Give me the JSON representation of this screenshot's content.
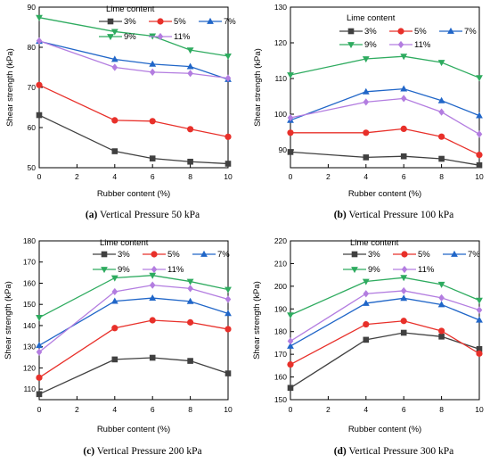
{
  "chart_data": [
    {
      "type": "line",
      "panel_label": "(a)",
      "caption": "Vertical Pressure 50 kPa",
      "xlabel": "Rubber content (%)",
      "ylabel": "Shear strength (kPa)",
      "x": [
        0,
        4,
        6,
        8,
        10
      ],
      "xlim": [
        0,
        10
      ],
      "xticks": [
        0,
        2,
        4,
        6,
        8,
        10
      ],
      "ylim": [
        50,
        90
      ],
      "yticks": [
        50,
        60,
        70,
        80,
        90
      ],
      "legend_title": "Lime content",
      "series": [
        {
          "name": "3%",
          "color": "#404040",
          "marker": "square",
          "values": [
            63.1,
            54.1,
            52.3,
            51.5,
            51.0
          ]
        },
        {
          "name": "5%",
          "color": "#e8302a",
          "marker": "circle",
          "values": [
            70.6,
            61.8,
            61.6,
            59.6,
            57.7
          ]
        },
        {
          "name": "7%",
          "color": "#2066c8",
          "marker": "triangle-up",
          "values": [
            81.5,
            77.0,
            75.8,
            75.2,
            72.0
          ]
        },
        {
          "name": "9%",
          "color": "#2eab5f",
          "marker": "triangle-down",
          "values": [
            87.4,
            83.9,
            82.8,
            79.3,
            77.8
          ]
        },
        {
          "name": "11%",
          "color": "#b37de0",
          "marker": "diamond",
          "values": [
            81.6,
            75.0,
            73.8,
            73.5,
            72.3
          ]
        }
      ]
    },
    {
      "type": "line",
      "panel_label": "(b)",
      "caption": "Vertical Pressure 100 kPa",
      "xlabel": "Rubber content (%)",
      "ylabel": "Shear strength (kPa)",
      "x": [
        0,
        4,
        6,
        8,
        10
      ],
      "xlim": [
        0,
        10
      ],
      "xticks": [
        0,
        2,
        4,
        6,
        8,
        10
      ],
      "ylim": [
        85,
        130
      ],
      "yticks": [
        90,
        100,
        110,
        120,
        130
      ],
      "legend_title": "Lime content",
      "series": [
        {
          "name": "3%",
          "color": "#404040",
          "marker": "square",
          "values": [
            89.4,
            87.9,
            88.2,
            87.5,
            85.7
          ]
        },
        {
          "name": "5%",
          "color": "#e8302a",
          "marker": "circle",
          "values": [
            94.8,
            94.8,
            95.9,
            93.7,
            88.6
          ]
        },
        {
          "name": "7%",
          "color": "#2066c8",
          "marker": "triangle-up",
          "values": [
            98.3,
            106.3,
            107.1,
            103.8,
            99.6
          ]
        },
        {
          "name": "9%",
          "color": "#2eab5f",
          "marker": "triangle-down",
          "values": [
            111.0,
            115.5,
            116.2,
            114.5,
            110.2
          ]
        },
        {
          "name": "11%",
          "color": "#b37de0",
          "marker": "diamond",
          "values": [
            99.0,
            103.4,
            104.4,
            100.6,
            94.4
          ]
        }
      ]
    },
    {
      "type": "line",
      "panel_label": "(c)",
      "caption": "Vertical Pressure 200 kPa",
      "xlabel": "Rubber content (%)",
      "ylabel": "Shear strength (kPa)",
      "x": [
        0,
        4,
        6,
        8,
        10
      ],
      "xlim": [
        0,
        10
      ],
      "xticks": [
        0,
        2,
        4,
        6,
        8,
        10
      ],
      "ylim": [
        105,
        180
      ],
      "yticks": [
        110,
        120,
        130,
        140,
        150,
        160,
        170,
        180
      ],
      "legend_title": "Lime content",
      "series": [
        {
          "name": "3%",
          "color": "#404040",
          "marker": "square",
          "values": [
            107.6,
            124.0,
            124.8,
            123.3,
            117.4
          ]
        },
        {
          "name": "5%",
          "color": "#e8302a",
          "marker": "circle",
          "values": [
            115.4,
            138.8,
            142.5,
            141.5,
            138.3
          ]
        },
        {
          "name": "7%",
          "color": "#2066c8",
          "marker": "triangle-up",
          "values": [
            130.6,
            151.5,
            153.0,
            151.4,
            145.7
          ]
        },
        {
          "name": "9%",
          "color": "#2eab5f",
          "marker": "triangle-down",
          "values": [
            143.8,
            162.5,
            163.7,
            160.8,
            157.0
          ]
        },
        {
          "name": "11%",
          "color": "#b37de0",
          "marker": "diamond",
          "values": [
            127.5,
            156.0,
            159.1,
            157.5,
            152.4
          ]
        }
      ]
    },
    {
      "type": "line",
      "panel_label": "(d)",
      "caption": "Vertical Pressure 300 kPa",
      "xlabel": "Rubber content (%)",
      "ylabel": "Shear strength (kPa)",
      "x": [
        0,
        4,
        6,
        8,
        10
      ],
      "xlim": [
        0,
        10
      ],
      "xticks": [
        0,
        2,
        4,
        6,
        8,
        10
      ],
      "ylim": [
        150,
        220
      ],
      "yticks": [
        150,
        160,
        170,
        180,
        190,
        200,
        210,
        220
      ],
      "legend_title": "Lime content",
      "series": [
        {
          "name": "3%",
          "color": "#404040",
          "marker": "square",
          "values": [
            155.2,
            176.4,
            179.5,
            177.8,
            172.3
          ]
        },
        {
          "name": "5%",
          "color": "#e8302a",
          "marker": "circle",
          "values": [
            165.5,
            183.2,
            184.7,
            180.3,
            170.3
          ]
        },
        {
          "name": "7%",
          "color": "#2066c8",
          "marker": "triangle-up",
          "values": [
            173.6,
            192.5,
            194.7,
            191.9,
            185.1
          ]
        },
        {
          "name": "9%",
          "color": "#2eab5f",
          "marker": "triangle-down",
          "values": [
            187.3,
            202.1,
            203.8,
            200.8,
            193.8
          ]
        },
        {
          "name": "11%",
          "color": "#b37de0",
          "marker": "diamond",
          "values": [
            175.8,
            196.7,
            198.0,
            194.9,
            189.5
          ]
        }
      ]
    }
  ]
}
